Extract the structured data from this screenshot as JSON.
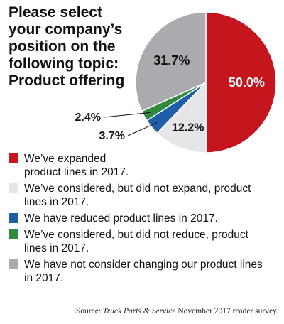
{
  "chart_data": {
    "type": "pie",
    "title_lines": [
      "Please select",
      "your company’s",
      "position on the",
      "following topic:",
      "Product offering"
    ],
    "slices": [
      {
        "label_lines": [
          "We’ve expanded",
          "product lines in 2017."
        ],
        "value": 50.0,
        "value_label": "50.0%",
        "color": "#c4161c"
      },
      {
        "label_lines": [
          "We’ve considered, but did not expand, product",
          "lines in 2017."
        ],
        "value": 12.2,
        "value_label": "12.2%",
        "color": "#e6e6e8"
      },
      {
        "label_lines": [
          "We have reduced product lines in 2017."
        ],
        "value": 3.7,
        "value_label": "3.7%",
        "color": "#1f5fa8"
      },
      {
        "label_lines": [
          "We’ve considered, but did not reduce, product",
          "lines in 2017."
        ],
        "value": 2.4,
        "value_label": "2.4%",
        "color": "#2f8a3e"
      },
      {
        "label_lines": [
          "We have not consider changing our product lines",
          "in 2017."
        ],
        "value": 31.7,
        "value_label": "31.7%",
        "color": "#aaabae"
      }
    ]
  },
  "source": {
    "prefix": "Source: ",
    "publication": "Truck Parts & Service",
    "suffix": " November 2017 reader survey."
  }
}
